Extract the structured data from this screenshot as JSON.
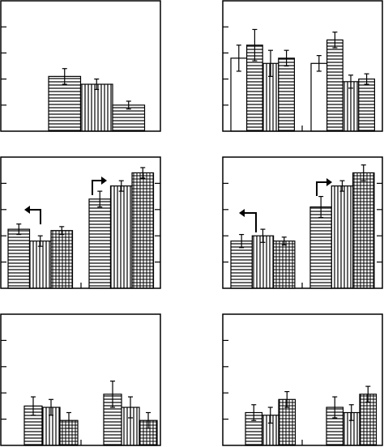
{
  "chart_data": [
    {
      "type": "bar",
      "categories": [
        null
      ],
      "ylim": [
        0,
        5
      ],
      "yticks": [
        1,
        2,
        3,
        4
      ],
      "series": [
        {
          "pattern": "horizontal",
          "values": [
            2.1
          ],
          "errors": [
            0.3
          ]
        },
        {
          "pattern": "vertical",
          "values": [
            1.8
          ],
          "errors": [
            0.2
          ]
        },
        {
          "pattern": "horizontal",
          "values": [
            1.0
          ],
          "errors": [
            0.15
          ]
        }
      ]
    },
    {
      "type": "bar",
      "categories": [
        null,
        null
      ],
      "ylim": [
        0,
        5
      ],
      "yticks": [
        1,
        2,
        3,
        4
      ],
      "series": [
        {
          "pattern": "none",
          "values": [
            2.8,
            2.6
          ],
          "errors": [
            0.5,
            0.3
          ]
        },
        {
          "pattern": "horizontal",
          "values": [
            3.3,
            3.5
          ],
          "errors": [
            0.6,
            0.3
          ]
        },
        {
          "pattern": "vertical",
          "values": [
            2.6,
            1.9
          ],
          "errors": [
            0.5,
            0.25
          ]
        },
        {
          "pattern": "horizontal",
          "values": [
            2.8,
            2.0
          ],
          "errors": [
            0.3,
            0.2
          ]
        }
      ]
    },
    {
      "type": "bar",
      "categories": [
        null,
        null
      ],
      "ylim": [
        0,
        5
      ],
      "yticks": [
        1,
        2,
        3,
        4
      ],
      "right_ticks": true,
      "series": [
        {
          "pattern": "horizontal",
          "values": [
            2.25,
            3.4
          ],
          "errors": [
            0.2,
            0.3
          ]
        },
        {
          "pattern": "vertical",
          "values": [
            1.8,
            3.9
          ],
          "errors": [
            0.2,
            0.2
          ]
        },
        {
          "pattern": "grid",
          "values": [
            2.2,
            4.4
          ],
          "errors": [
            0.15,
            0.2
          ]
        }
      ]
    },
    {
      "type": "bar",
      "categories": [
        null,
        null
      ],
      "ylim": [
        0,
        5
      ],
      "yticks": [
        1,
        2,
        3,
        4
      ],
      "right_ticks": true,
      "series": [
        {
          "pattern": "horizontal",
          "values": [
            1.8,
            3.1
          ],
          "errors": [
            0.25,
            0.4
          ]
        },
        {
          "pattern": "vertical",
          "values": [
            2.0,
            3.9
          ],
          "errors": [
            0.25,
            0.2
          ]
        },
        {
          "pattern": "grid",
          "values": [
            1.8,
            4.4
          ],
          "errors": [
            0.15,
            0.3
          ]
        }
      ]
    },
    {
      "type": "bar",
      "categories": [
        null,
        null
      ],
      "ylim": [
        0,
        5
      ],
      "yticks": [
        1,
        2,
        3,
        4
      ],
      "series": [
        {
          "pattern": "horizontal",
          "values": [
            1.5,
            1.95
          ],
          "errors": [
            0.35,
            0.5
          ]
        },
        {
          "pattern": "vertical",
          "values": [
            1.45,
            1.45
          ],
          "errors": [
            0.3,
            0.4
          ]
        },
        {
          "pattern": "grid",
          "values": [
            0.95,
            0.95
          ],
          "errors": [
            0.3,
            0.3
          ]
        }
      ]
    },
    {
      "type": "bar",
      "categories": [
        null,
        null
      ],
      "ylim": [
        0,
        5
      ],
      "yticks": [
        1,
        2,
        3,
        4
      ],
      "series": [
        {
          "pattern": "horizontal",
          "values": [
            1.25,
            1.45
          ],
          "errors": [
            0.3,
            0.4
          ]
        },
        {
          "pattern": "vertical",
          "values": [
            1.15,
            1.25
          ],
          "errors": [
            0.3,
            0.3
          ]
        },
        {
          "pattern": "grid",
          "values": [
            1.75,
            1.95
          ],
          "errors": [
            0.3,
            0.3
          ]
        }
      ]
    }
  ]
}
